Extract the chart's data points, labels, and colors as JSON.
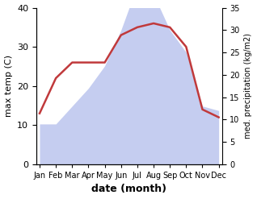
{
  "months": [
    "Jan",
    "Feb",
    "Mar",
    "Apr",
    "May",
    "Jun",
    "Jul",
    "Aug",
    "Sep",
    "Oct",
    "Nov",
    "Dec"
  ],
  "temperature": [
    13,
    22,
    26,
    26,
    26,
    33,
    35,
    36,
    35,
    30,
    14,
    12
  ],
  "precipitation_right": [
    9,
    9,
    13,
    17,
    22,
    30,
    40,
    38,
    30,
    25,
    13,
    12
  ],
  "temp_color": "#c0393b",
  "precip_color": "#c5cdf0",
  "left_ylim": [
    0,
    40
  ],
  "right_ylim": [
    0,
    35
  ],
  "left_yticks": [
    0,
    10,
    20,
    30,
    40
  ],
  "right_yticks": [
    0,
    5,
    10,
    15,
    20,
    25,
    30,
    35
  ],
  "xlabel": "date (month)",
  "ylabel_left": "max temp (C)",
  "ylabel_right": "med. precipitation (kg/m2)",
  "figsize": [
    3.18,
    2.47
  ],
  "dpi": 100
}
